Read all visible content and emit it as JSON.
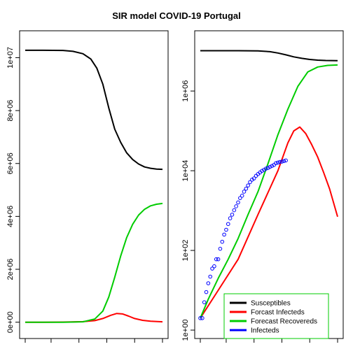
{
  "title": "SIR model COVID-19 Portugal",
  "colors": {
    "susceptibles": "#000000",
    "infecteds": "#ff0000",
    "recovereds": "#00cc00",
    "observed": "#0000ff",
    "legend_border": "#00cc00",
    "axes": "#000000"
  },
  "legend": {
    "entries": [
      {
        "label": "Susceptibles",
        "color": "#000000"
      },
      {
        "label": "Forcast Infecteds",
        "color": "#ff0000"
      },
      {
        "label": "Forecast Recovereds",
        "color": "#00cc00"
      },
      {
        "label": "Infecteds",
        "color": "#0000ff"
      }
    ],
    "placement": "bottom-right of right panel"
  },
  "chart_data": [
    {
      "type": "line",
      "panel": "left",
      "scale": "linear",
      "title": "",
      "xlabel": "",
      "ylabel": "",
      "xlim": [
        1,
        70
      ],
      "ylim": [
        -300000,
        10700000
      ],
      "yticks": [
        {
          "value": 0,
          "label": "0e+00"
        },
        {
          "value": 2000000,
          "label": "2e+06"
        },
        {
          "value": 4000000,
          "label": "4e+06"
        },
        {
          "value": 6000000,
          "label": "6e+06"
        },
        {
          "value": 8000000,
          "label": "8e+06"
        },
        {
          "value": 10000000,
          "label": "1e+07"
        }
      ],
      "xticks": [
        1,
        14,
        28,
        42,
        56,
        70
      ],
      "series": [
        {
          "key": "susceptibles",
          "x": [
            1,
            10,
            20,
            25,
            30,
            34,
            37,
            40,
            43,
            46,
            49,
            52,
            55,
            58,
            61,
            64,
            67,
            70
          ],
          "values": [
            10280000,
            10280000,
            10275000,
            10240000,
            10150000,
            9950000,
            9600000,
            9000000,
            8100000,
            7300000,
            6800000,
            6400000,
            6150000,
            5980000,
            5870000,
            5820000,
            5790000,
            5780000
          ]
        },
        {
          "key": "infecteds",
          "x": [
            1,
            10,
            20,
            30,
            36,
            40,
            44,
            47,
            50,
            53,
            56,
            60,
            64,
            70
          ],
          "values": [
            0,
            0,
            3000,
            20000,
            60000,
            140000,
            260000,
            330000,
            310000,
            230000,
            140000,
            70000,
            35000,
            15000
          ]
        },
        {
          "key": "recovereds",
          "x": [
            1,
            10,
            20,
            30,
            36,
            40,
            43,
            46,
            49,
            52,
            55,
            58,
            61,
            64,
            67,
            70
          ],
          "values": [
            0,
            0,
            0,
            15000,
            120000,
            420000,
            950000,
            1700000,
            2500000,
            3200000,
            3700000,
            4050000,
            4270000,
            4400000,
            4460000,
            4490000
          ]
        }
      ]
    },
    {
      "type": "line",
      "panel": "right",
      "scale": "log",
      "title": "",
      "xlabel": "",
      "ylabel": "",
      "xlim": [
        1,
        70
      ],
      "ylim": [
        1,
        20000000
      ],
      "yticks": [
        {
          "value": 1,
          "label": "1e+00"
        },
        {
          "value": 100,
          "label": "1e+02"
        },
        {
          "value": 10000,
          "label": "1e+04"
        },
        {
          "value": 1000000,
          "label": "1e+06"
        }
      ],
      "xticks": [
        1,
        14,
        28,
        42,
        56,
        70
      ],
      "series": [
        {
          "key": "susceptibles",
          "x": [
            1,
            10,
            20,
            30,
            36,
            40,
            44,
            48,
            52,
            56,
            60,
            64,
            70
          ],
          "values": [
            10280000,
            10280000,
            10275000,
            10150000,
            9700000,
            9000000,
            8100000,
            7200000,
            6600000,
            6200000,
            5950000,
            5830000,
            5780000
          ]
        },
        {
          "key": "infecteds",
          "x": [
            1,
            10,
            20,
            30,
            40,
            45,
            48,
            51,
            54,
            57,
            60,
            63,
            66,
            70
          ],
          "values": [
            2,
            10,
            60,
            800,
            10000,
            50000,
            100000,
            125000,
            85000,
            45000,
            22000,
            9000,
            3500,
            700
          ]
        },
        {
          "key": "recovereds",
          "x": [
            1,
            5,
            10,
            15,
            20,
            25,
            30,
            35,
            40,
            45,
            50,
            55,
            60,
            65,
            70
          ],
          "values": [
            2,
            6,
            20,
            60,
            200,
            800,
            3000,
            15000,
            80000,
            350000,
            1300000,
            3000000,
            4000000,
            4400000,
            4500000
          ]
        },
        {
          "key": "observed",
          "marker": "open-circle",
          "x": [
            1,
            2,
            3,
            4,
            5,
            6,
            7,
            8,
            9,
            10,
            11,
            12,
            13,
            14,
            15,
            16,
            17,
            18,
            19,
            20,
            21,
            22,
            23,
            24,
            25,
            26,
            27,
            28,
            29,
            30,
            31,
            32,
            33,
            34,
            35,
            36,
            37,
            38,
            39,
            40,
            41,
            42,
            43,
            44
          ],
          "values": [
            2,
            2,
            5,
            9,
            15,
            22,
            35,
            40,
            60,
            60,
            110,
            165,
            250,
            330,
            460,
            640,
            790,
            1020,
            1280,
            1600,
            2060,
            2360,
            2990,
            3540,
            4270,
            5170,
            5960,
            6410,
            7440,
            8250,
            9030,
            9890,
            10520,
            11280,
            11730,
            12440,
            13140,
            13950,
            15470,
            15990,
            16580,
            16930,
            17450,
            18090
          ]
        }
      ]
    }
  ]
}
